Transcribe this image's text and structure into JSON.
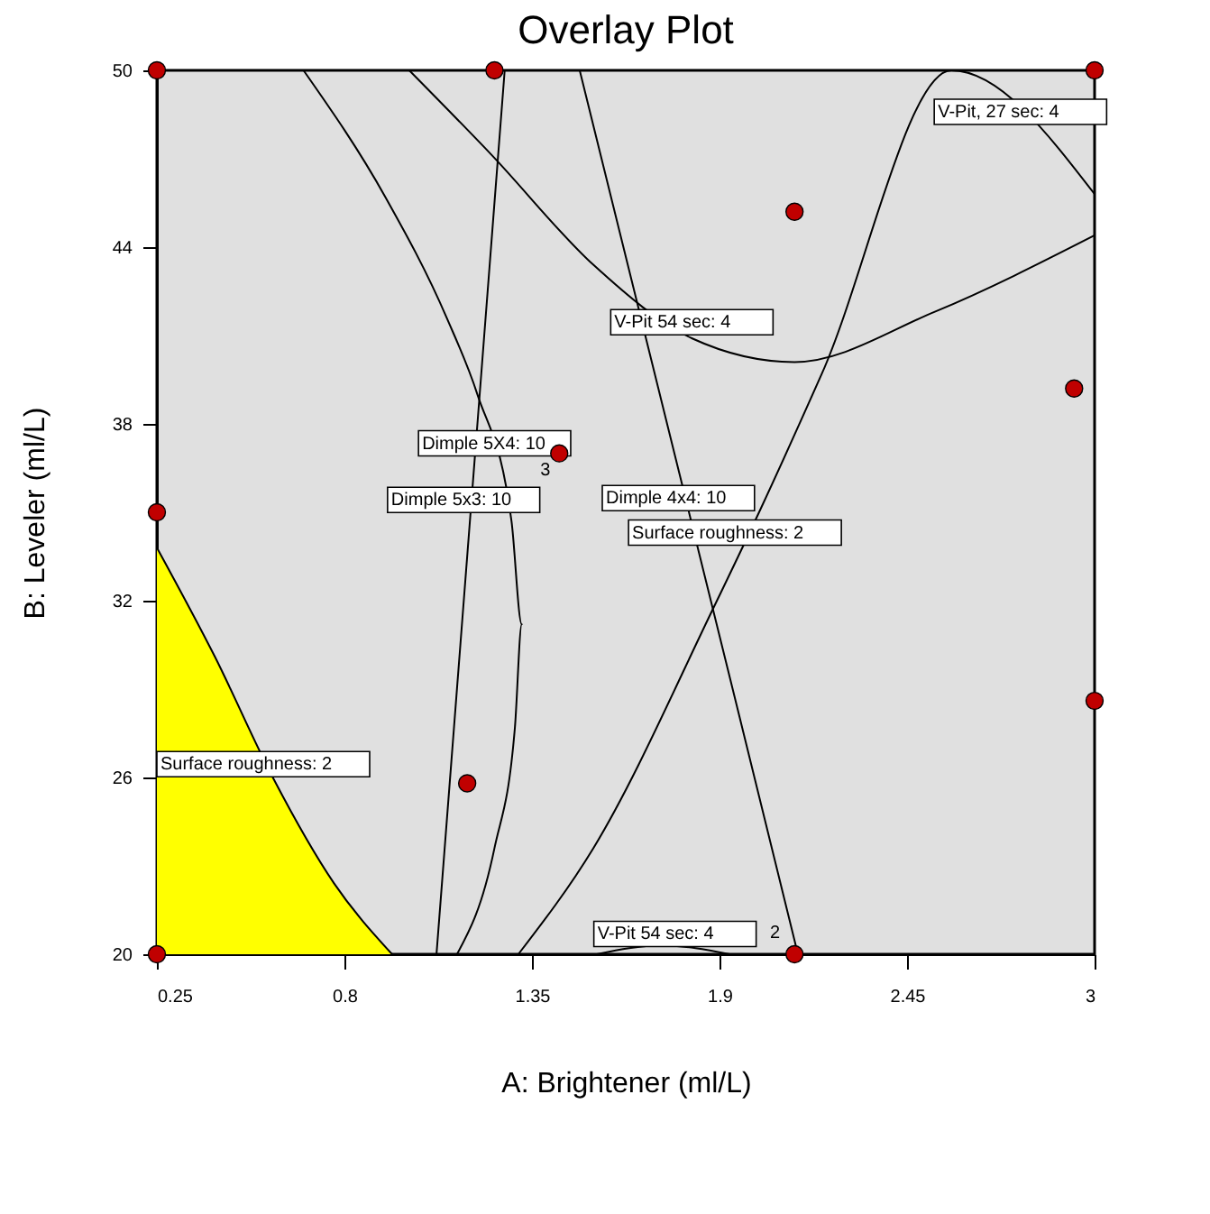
{
  "chart_data": {
    "type": "scatter",
    "title": "Overlay Plot",
    "xlabel": "A: Brightener (ml/L)",
    "ylabel": "B: Leveler (ml/L)",
    "xlim": [
      0.25,
      3.0
    ],
    "ylim": [
      20,
      50
    ],
    "xticks": [
      0.25,
      0.8,
      1.35,
      1.9,
      2.45,
      3
    ],
    "yticks": [
      20,
      26,
      32,
      38,
      44,
      50
    ],
    "grid": false,
    "line_style": "solid",
    "series": [
      {
        "type": "area",
        "color": "#ffff00",
        "x": [
          0.25,
          0.42,
          0.59,
          0.77,
          0.94
        ],
        "values": [
          33.8,
          30.1,
          26.0,
          22.4,
          20
        ]
      },
      {
        "type": "line",
        "color": "#000000",
        "x": [
          0.68,
          0.92,
          1.1,
          1.19,
          1.29,
          1.32,
          1.3,
          1.24,
          1.13
        ],
        "values": [
          50,
          45.7,
          41.6,
          39.0,
          34.7,
          31.2,
          27.7,
          23.6,
          20
        ]
      },
      {
        "type": "line",
        "color": "#000000",
        "x": [
          1.27,
          1.21,
          1.07
        ],
        "values": [
          50,
          41,
          20
        ]
      },
      {
        "type": "line",
        "color": "#000000",
        "x": [
          0.99,
          1.23,
          1.53,
          1.82,
          2.12,
          2.53,
          3.0
        ],
        "values": [
          50,
          47.15,
          43.4,
          40.9,
          40.1,
          41.8,
          44.4
        ]
      },
      {
        "type": "line",
        "color": "#000000",
        "x": [
          1.49,
          1.96,
          2.13
        ],
        "values": [
          50,
          28,
          20
        ]
      },
      {
        "type": "line",
        "color": "#000000",
        "x": [
          1.31,
          1.53,
          1.88,
          2.02,
          2.2,
          2.58,
          3.0
        ],
        "values": [
          20,
          23.6,
          31.7,
          35.1,
          39.7,
          50,
          45.8
        ]
      },
      {
        "type": "line",
        "color": "#000000",
        "x": [
          1.54,
          1.73,
          1.93
        ],
        "values": [
          20,
          20.3,
          20
        ]
      },
      {
        "color": "#c00000",
        "marker": "circle",
        "x": [
          0.25,
          1.24,
          3.0,
          2.12,
          2.94,
          1.43,
          0.25,
          3.0,
          1.16,
          0.25,
          2.12
        ],
        "values": [
          50,
          50,
          50,
          45.2,
          39.2,
          37,
          35,
          28.6,
          25.8,
          20,
          20
        ]
      }
    ],
    "annotations": [
      "V-Pit, 27 sec: 4",
      "V-Pit 54 sec: 4",
      "Dimple 5X4: 10",
      "Dimple 5x3: 10",
      "Dimple 4x4: 10",
      "Surface roughness: 2",
      "Surface roughness: 2",
      "V-Pit 54 sec: 4",
      "3",
      "2"
    ]
  }
}
